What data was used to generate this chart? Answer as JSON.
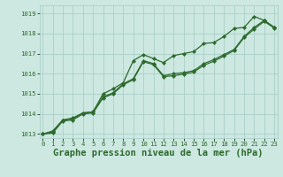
{
  "title": "Graphe pression niveau de la mer (hPa)",
  "background_color": "#cce8e0",
  "grid_color": "#aacfc8",
  "line_color": "#2d6a2d",
  "ylim": [
    1012.8,
    1019.4
  ],
  "yticks": [
    1013,
    1014,
    1015,
    1016,
    1017,
    1018,
    1019
  ],
  "xlim": [
    -0.3,
    23.3
  ],
  "marker": "D",
  "marker_size": 2.2,
  "linewidth": 0.9,
  "title_fontsize": 7.5,
  "tick_fontsize": 5.2,
  "s1": [
    1013.0,
    1013.1,
    1013.7,
    1013.8,
    1014.05,
    1014.1,
    1015.0,
    1015.25,
    1015.55,
    1016.65,
    1016.95,
    1016.75,
    1016.55,
    1016.9,
    1017.0,
    1017.1,
    1017.5,
    1017.55,
    1017.85,
    1018.25,
    1018.3,
    1018.85,
    1018.65,
    1018.3
  ],
  "s2": [
    1013.0,
    1013.15,
    1013.7,
    1013.75,
    1014.05,
    1014.1,
    1014.85,
    1015.05,
    1015.5,
    1015.75,
    1016.65,
    1016.5,
    1015.9,
    1016.0,
    1016.05,
    1016.15,
    1016.5,
    1016.7,
    1016.95,
    1017.2,
    1017.85,
    1018.3,
    1018.65,
    1018.3
  ],
  "s3": [
    1013.0,
    1013.05,
    1013.65,
    1013.7,
    1014.0,
    1014.05,
    1014.8,
    1015.0,
    1015.45,
    1015.7,
    1016.6,
    1016.45,
    1015.85,
    1015.9,
    1015.98,
    1016.08,
    1016.42,
    1016.62,
    1016.88,
    1017.15,
    1017.8,
    1018.22,
    1018.6,
    1018.27
  ]
}
